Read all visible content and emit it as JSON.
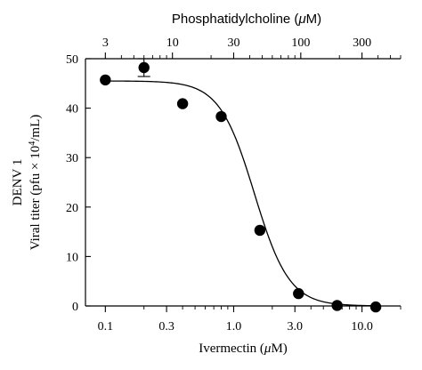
{
  "chart_data": {
    "type": "scatter",
    "x_axis_bottom": {
      "label_prefix": "Ivermectin (",
      "label_unit_italic": "μ",
      "label_suffix": "M)",
      "scale": "log",
      "range": [
        0.07,
        20
      ],
      "ticks": [
        0.1,
        0.3,
        1.0,
        3.0,
        10.0
      ],
      "tick_labels": [
        "0.1",
        "0.3",
        "1.0",
        "3.0",
        "10.0"
      ]
    },
    "x_axis_top": {
      "label_prefix": "Phosphatidylcholine (",
      "label_unit_italic": "μ",
      "label_suffix": "M)",
      "scale": "log",
      "ticks": [
        3,
        10,
        30,
        100,
        300
      ],
      "tick_labels": [
        "3",
        "10",
        "30",
        "100",
        "300"
      ]
    },
    "y_axis": {
      "label_line1": "DENV 1",
      "label_line2_prefix": "Viral titer (pfu × 10",
      "label_line2_sup": "4",
      "label_line2_suffix": "/mL)",
      "range": [
        0,
        50
      ],
      "ticks": [
        0,
        10,
        20,
        30,
        40,
        50
      ],
      "tick_labels": [
        "0",
        "10",
        "20",
        "30",
        "40",
        "50"
      ]
    },
    "points": [
      {
        "x": 0.1,
        "y": 45.7
      },
      {
        "x": 0.2,
        "y": 48.2,
        "err": 1.8
      },
      {
        "x": 0.4,
        "y": 40.9
      },
      {
        "x": 0.8,
        "y": 38.3
      },
      {
        "x": 1.6,
        "y": 15.3
      },
      {
        "x": 3.2,
        "y": 2.5
      },
      {
        "x": 6.4,
        "y": 0.1
      },
      {
        "x": 12.8,
        "y": -0.2
      }
    ],
    "fit_curve": {
      "top": 45.5,
      "bottom": 0,
      "ic50": 1.45,
      "hill": 3.2
    },
    "grid": false,
    "legend": "none"
  }
}
